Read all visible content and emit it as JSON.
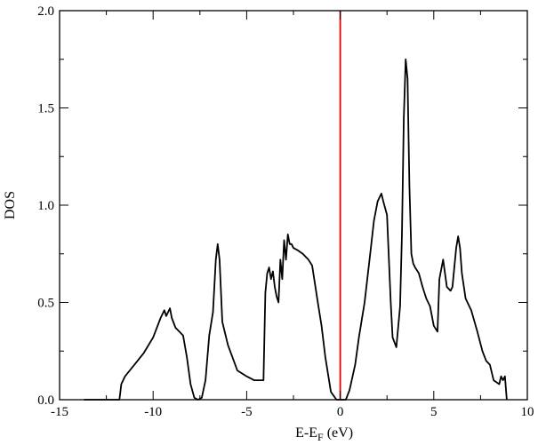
{
  "chart_data": {
    "type": "line",
    "xlabel": "E-E_F (eV)",
    "xlabel_main": "E-E",
    "xlabel_sub": "F",
    "xlabel_unit": " (eV)",
    "ylabel": "DOS",
    "xlim": [
      -15,
      10
    ],
    "ylim": [
      0,
      2.0
    ],
    "xticks": [
      -15,
      -10,
      -5,
      0,
      5,
      10
    ],
    "xtick_labels": [
      "-15",
      "-10",
      "-5",
      "0",
      "5",
      "10"
    ],
    "yticks": [
      0,
      0.5,
      1.0,
      1.5,
      2.0
    ],
    "ytick_labels": [
      "0.0",
      "0.5",
      "1.0",
      "1.5",
      "2.0"
    ],
    "grid": false,
    "series": [
      {
        "color": "#000000",
        "x": [
          -13.7,
          -11.8,
          -11.7,
          -11.5,
          -11.0,
          -10.5,
          -10.0,
          -9.6,
          -9.4,
          -9.3,
          -9.1,
          -9.0,
          -8.8,
          -8.6,
          -8.4,
          -8.2,
          -8.0,
          -7.8,
          -7.6,
          -7.4,
          -7.2,
          -7.0,
          -6.8,
          -6.65,
          -6.55,
          -6.45,
          -6.3,
          -6.0,
          -5.5,
          -5.0,
          -4.6,
          -4.1,
          -4.0,
          -3.9,
          -3.8,
          -3.7,
          -3.6,
          -3.5,
          -3.4,
          -3.3,
          -3.2,
          -3.1,
          -3.0,
          -2.9,
          -2.8,
          -2.7,
          -2.6,
          -2.5,
          -2.3,
          -2.0,
          -1.7,
          -1.5,
          -1.2,
          -1.0,
          -0.8,
          -0.5,
          -0.2,
          0.0,
          0.3,
          0.5,
          0.8,
          1.0,
          1.3,
          1.6,
          1.8,
          2.0,
          2.2,
          2.3,
          2.5,
          2.7,
          2.8,
          3.0,
          3.2,
          3.3,
          3.4,
          3.5,
          3.6,
          3.7,
          3.8,
          3.9,
          4.0,
          4.2,
          4.4,
          4.6,
          4.8,
          5.0,
          5.2,
          5.3,
          5.5,
          5.7,
          5.9,
          6.0,
          6.2,
          6.3,
          6.4,
          6.5,
          6.7,
          7.0,
          7.3,
          7.6,
          7.8,
          8.0,
          8.2,
          8.5,
          8.6,
          8.7,
          8.8,
          8.9
        ],
        "y": [
          0.0,
          0.0,
          0.08,
          0.12,
          0.18,
          0.24,
          0.32,
          0.42,
          0.46,
          0.43,
          0.47,
          0.42,
          0.37,
          0.35,
          0.33,
          0.22,
          0.08,
          0.01,
          0.0,
          0.01,
          0.1,
          0.33,
          0.45,
          0.72,
          0.8,
          0.72,
          0.4,
          0.28,
          0.15,
          0.12,
          0.1,
          0.1,
          0.55,
          0.65,
          0.68,
          0.62,
          0.66,
          0.58,
          0.53,
          0.5,
          0.72,
          0.62,
          0.82,
          0.72,
          0.85,
          0.8,
          0.8,
          0.78,
          0.77,
          0.75,
          0.72,
          0.69,
          0.5,
          0.38,
          0.22,
          0.04,
          0.0,
          0.0,
          0.0,
          0.05,
          0.18,
          0.32,
          0.5,
          0.75,
          0.92,
          1.02,
          1.06,
          1.02,
          0.95,
          0.5,
          0.32,
          0.27,
          0.48,
          0.85,
          1.45,
          1.75,
          1.65,
          1.1,
          0.75,
          0.7,
          0.68,
          0.65,
          0.58,
          0.52,
          0.48,
          0.38,
          0.35,
          0.62,
          0.72,
          0.58,
          0.56,
          0.58,
          0.78,
          0.84,
          0.78,
          0.65,
          0.52,
          0.46,
          0.36,
          0.25,
          0.2,
          0.18,
          0.1,
          0.08,
          0.12,
          0.1,
          0.12,
          0.0
        ]
      }
    ],
    "vline": {
      "x": 0,
      "color": "#e00000"
    }
  }
}
